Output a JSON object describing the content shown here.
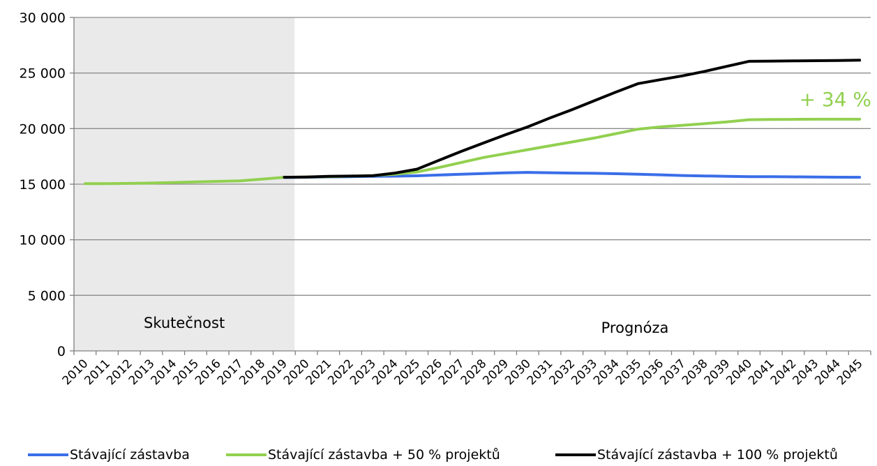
{
  "chart_data": {
    "type": "line",
    "title": "",
    "xlabel": "",
    "ylabel": "",
    "ylim": [
      0,
      30000
    ],
    "y_ticks": [
      0,
      5000,
      10000,
      15000,
      20000,
      25000,
      30000
    ],
    "y_tick_labels": [
      "0",
      "5 000",
      "10 000",
      "15 000",
      "20 000",
      "25 000",
      "30 000"
    ],
    "grid": "horizontal",
    "legend_position": "bottom",
    "x": [
      2010,
      2011,
      2012,
      2013,
      2014,
      2015,
      2016,
      2017,
      2018,
      2019,
      2020,
      2021,
      2022,
      2023,
      2024,
      2025,
      2026,
      2027,
      2028,
      2029,
      2030,
      2031,
      2032,
      2033,
      2034,
      2035,
      2036,
      2037,
      2038,
      2039,
      2040,
      2041,
      2042,
      2043,
      2044,
      2045
    ],
    "x_tick_labels": [
      "2010",
      "2011",
      "2012",
      "2013",
      "2014",
      "2015",
      "2016",
      "2017",
      "2018",
      "2019",
      "2020",
      "2021",
      "2022",
      "2023",
      "2024",
      "2025",
      "2026",
      "2027",
      "2028",
      "2029",
      "2030",
      "2031",
      "2032",
      "2033",
      "2034",
      "2035",
      "2036",
      "2037",
      "2038",
      "2039",
      "2040",
      "2041",
      "2042",
      "2043",
      "2044",
      "2045"
    ],
    "history_period": {
      "label": "Skutečnost",
      "from": 2010,
      "to": 2019,
      "shade_color": "#eaeaea"
    },
    "forecast_label": "Prognóza",
    "series": [
      {
        "name": "Stávající zástavba",
        "color": "#3a6ee8",
        "x": [
          2019,
          2020,
          2021,
          2022,
          2023,
          2024,
          2025,
          2026,
          2027,
          2028,
          2029,
          2030,
          2031,
          2032,
          2033,
          2034,
          2035,
          2036,
          2037,
          2038,
          2039,
          2040,
          2041,
          2042,
          2043,
          2044,
          2045
        ],
        "values": [
          15600,
          15620,
          15650,
          15680,
          15700,
          15720,
          15750,
          15820,
          15900,
          15960,
          16020,
          16060,
          16030,
          16000,
          15980,
          15940,
          15900,
          15840,
          15780,
          15740,
          15700,
          15680,
          15670,
          15660,
          15640,
          15630,
          15620
        ]
      },
      {
        "name": "Stávající zástavba + 50 % projektů",
        "color": "#92d050",
        "x": [
          2010,
          2011,
          2012,
          2013,
          2014,
          2015,
          2016,
          2017,
          2018,
          2019,
          2020,
          2021,
          2022,
          2023,
          2024,
          2025,
          2026,
          2027,
          2028,
          2029,
          2030,
          2031,
          2032,
          2033,
          2034,
          2035,
          2036,
          2037,
          2038,
          2039,
          2040,
          2041,
          2042,
          2043,
          2044,
          2045
        ],
        "values": [
          15050,
          15050,
          15070,
          15100,
          15150,
          15200,
          15250,
          15300,
          15450,
          15620,
          15640,
          15680,
          15720,
          15780,
          15900,
          16100,
          16500,
          16950,
          17400,
          17750,
          18100,
          18450,
          18800,
          19150,
          19550,
          19950,
          20150,
          20300,
          20450,
          20600,
          20800,
          20820,
          20830,
          20840,
          20840,
          20840
        ]
      },
      {
        "name": "Stávající zástavba + 100 % projektů",
        "color": "#000000",
        "x": [
          2019,
          2020,
          2021,
          2022,
          2023,
          2024,
          2025,
          2026,
          2027,
          2028,
          2029,
          2030,
          2031,
          2032,
          2033,
          2034,
          2035,
          2036,
          2037,
          2038,
          2039,
          2040,
          2041,
          2042,
          2043,
          2044,
          2045
        ],
        "values": [
          15620,
          15640,
          15700,
          15730,
          15760,
          16000,
          16350,
          17150,
          17950,
          18700,
          19450,
          20150,
          20950,
          21700,
          22500,
          23300,
          24050,
          24400,
          24750,
          25150,
          25600,
          26050,
          26070,
          26090,
          26110,
          26130,
          26150
        ]
      }
    ],
    "annotations": [
      {
        "text": "+ 34 %",
        "color": "#92d050",
        "x": 2045,
        "y": 20840
      }
    ]
  }
}
